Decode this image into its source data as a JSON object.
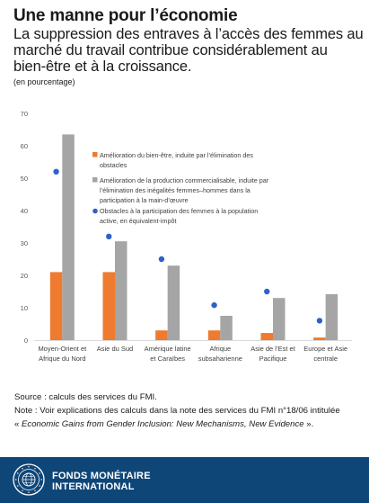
{
  "header": {
    "title": "Une manne pour l’économie",
    "subtitle": "La suppression des entraves à l’accès des femmes au marché du travail contribue considérablement au bien-être et à la croissance.",
    "unit": "(en pourcentage)"
  },
  "notes": {
    "source": "Source : calculs des services du FMI.",
    "note": "Note : Voir explications des calculs dans la note des services du FMI n°18/06 intitulée",
    "ref_open": "« ",
    "ref_title": "Economic Gains from Gender Inclusion: New Mechanisms, New Evidence",
    "ref_close": " »."
  },
  "footer": {
    "org_line1": "FONDS MONÉTAIRE",
    "org_line2": "INTERNATIONAL",
    "seal_text": "INTERNATIONAL MONETARY FUND 1944"
  },
  "colors": {
    "orange": "#ee7b30",
    "gray": "#a5a5a5",
    "blue": "#2e62c9",
    "footer": "#0f4678"
  },
  "chart_data": {
    "type": "bar",
    "categories": [
      [
        "Moyen-Orient et",
        "Afrique du Nord"
      ],
      [
        "Asie du Sud"
      ],
      [
        "Amérique latine",
        "et Caraïbes"
      ],
      [
        "Afrique",
        "subsaharienne"
      ],
      [
        "Asie de l’Est et",
        "Pacifique"
      ],
      [
        "Europe et Asie",
        "centrale"
      ]
    ],
    "ylim": [
      0,
      70
    ],
    "yticks": [
      0,
      10,
      20,
      30,
      40,
      50,
      60,
      70
    ],
    "grid": false,
    "legend_position": "top-right",
    "series": [
      {
        "name": "Amélioration du bien-être, induite par l’élimination des obstacles",
        "kind": "bar",
        "color": "#ee7b30",
        "values": [
          21,
          21,
          3,
          3,
          2.2,
          0.8
        ]
      },
      {
        "name": "Amélioration de la production commercialisable, induite par l’élimination des inégalités femmes–hommes dans la participation à la main-d’œuvre",
        "kind": "bar",
        "color": "#a5a5a5",
        "values": [
          63.5,
          30.5,
          23,
          7.5,
          13,
          14.2
        ]
      },
      {
        "name": "Obstacles à la participation des femmes à la population active, en équivalent-impôt",
        "kind": "dot",
        "color": "#2e62c9",
        "values": [
          52,
          32,
          25,
          10.8,
          15,
          6
        ]
      }
    ]
  }
}
